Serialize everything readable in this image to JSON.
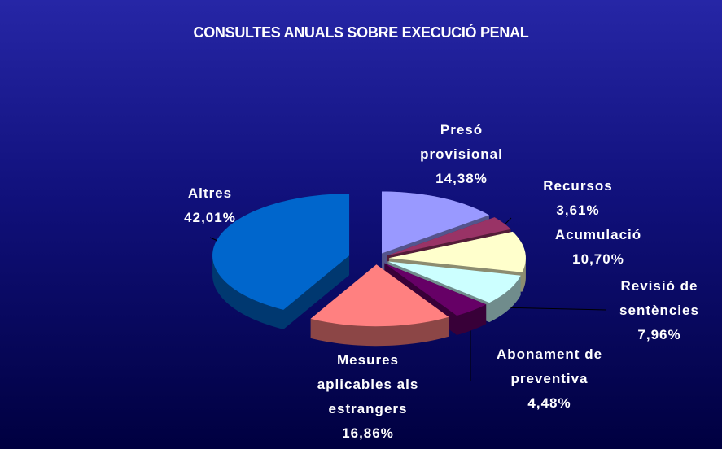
{
  "chart_data": {
    "type": "pie",
    "title": "CONSULTES ANUALS SOBRE EXECUCIÓ PENAL",
    "categories": [
      "Presó provisional",
      "Recursos",
      "Acumulació",
      "Revisió de sentències",
      "Abonament de preventiva",
      "Mesures aplicables als estrangers",
      "Altres"
    ],
    "values": [
      14.38,
      3.61,
      10.7,
      7.96,
      4.48,
      16.86,
      42.01
    ],
    "value_labels": [
      "14,38%",
      "3,61%",
      "10,70%",
      "7,96%",
      "4,48%",
      "16,86%",
      "42,01%"
    ],
    "colors": [
      "#9999ff",
      "#993366",
      "#ffffcc",
      "#ccffff",
      "#660066",
      "#ff8080",
      "#0066cc"
    ]
  }
}
